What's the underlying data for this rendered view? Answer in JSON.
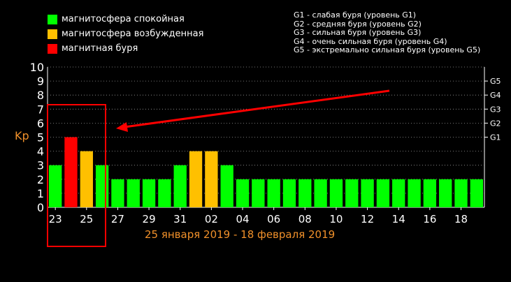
{
  "legend": [
    {
      "label": "магнитосфера спокойная",
      "color": "#00ff00"
    },
    {
      "label": "магнитосфера возбужденная",
      "color": "#ffc000"
    },
    {
      "label": "магнитная буря",
      "color": "#ff0000"
    }
  ],
  "g_scale": [
    "G1 - слабая буря (уровень G1)",
    "G2 - средняя буря (уровень G2)",
    "G3 - сильная буря (уровень G3)",
    "G4 - очень сильная буря (уровень G4)",
    "G5 - экстремально сильная буря (уровень G5)"
  ],
  "chart_data": {
    "type": "bar",
    "ylabel": "Kp",
    "ylim": [
      0,
      10
    ],
    "yticks": [
      "0",
      "1",
      "2",
      "3",
      "4",
      "5",
      "6",
      "7",
      "8",
      "9",
      "10"
    ],
    "right_ticks": [
      {
        "label": "G1",
        "kp": 5
      },
      {
        "label": "G2",
        "kp": 6
      },
      {
        "label": "G3",
        "kp": 7
      },
      {
        "label": "G4",
        "kp": 8
      },
      {
        "label": "G5",
        "kp": 9
      }
    ],
    "x_tick_labels": [
      "23",
      "25",
      "27",
      "29",
      "31",
      "02",
      "04",
      "06",
      "08",
      "10",
      "12",
      "14",
      "16",
      "18"
    ],
    "date_range": "25 января 2019 - 18 февраля 2019",
    "colors": {
      "quiet": "#00ff00",
      "active": "#ffc000",
      "storm": "#ff0000",
      "annotation": "#ff0000"
    },
    "values": [
      3,
      5,
      4,
      3,
      2,
      2,
      2,
      2,
      3,
      4,
      4,
      3,
      2,
      2,
      2,
      2,
      2,
      2,
      2,
      2,
      2,
      2,
      2,
      2,
      2,
      2,
      2,
      2
    ],
    "status": [
      "quiet",
      "storm",
      "active",
      "quiet",
      "quiet",
      "quiet",
      "quiet",
      "quiet",
      "quiet",
      "active",
      "active",
      "quiet",
      "quiet",
      "quiet",
      "quiet",
      "quiet",
      "quiet",
      "quiet",
      "quiet",
      "quiet",
      "quiet",
      "quiet",
      "quiet",
      "quiet",
      "quiet",
      "quiet",
      "quiet",
      "quiet"
    ],
    "grid": true
  }
}
